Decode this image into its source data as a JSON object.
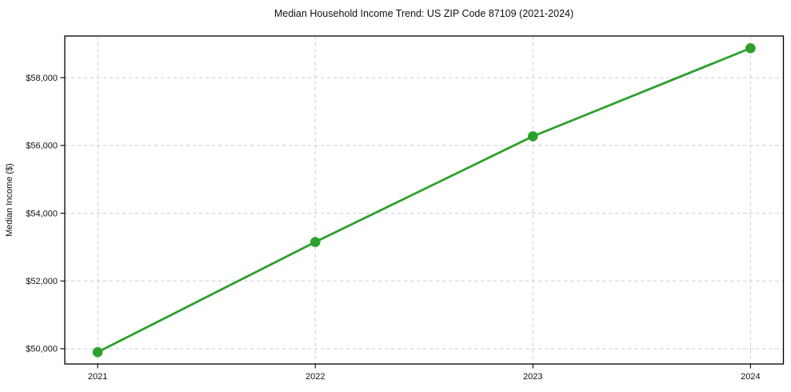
{
  "chart_data": {
    "type": "line",
    "title": "Median Household Income Trend: US ZIP Code 87109 (2021-2024)",
    "xlabel": "",
    "ylabel": "Median Income ($)",
    "categories": [
      "2021",
      "2022",
      "2023",
      "2024"
    ],
    "series": [
      {
        "name": "Median Income ($)",
        "values": [
          49900,
          53150,
          56270,
          58870
        ]
      }
    ],
    "ylim": [
      49550,
      59230
    ],
    "yticks": [
      50000,
      52000,
      54000,
      56000,
      58000
    ],
    "ytick_labels": [
      "$50,000",
      "$52,000",
      "$54,000",
      "$56,000",
      "$58,000"
    ],
    "grid": true,
    "legend_position": "none",
    "marker": "circle",
    "colors": {
      "line": "#2ca02c",
      "marker": "#2ca02c",
      "grid": "#cdcdcd",
      "axis": "#000000",
      "text": "#111111",
      "background": "#ffffff"
    }
  }
}
